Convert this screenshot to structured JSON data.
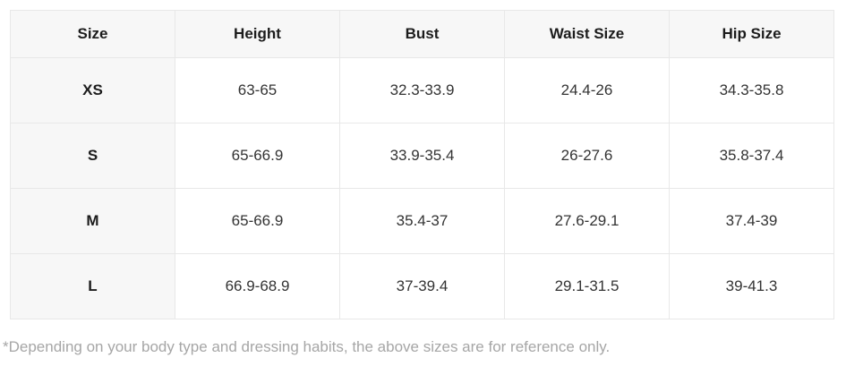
{
  "table": {
    "columns": [
      "Size",
      "Height",
      "Bust",
      "Waist Size",
      "Hip Size"
    ],
    "row_keys": [
      "size",
      "height",
      "bust",
      "waist",
      "hip"
    ],
    "rows": [
      {
        "size": "XS",
        "height": "63-65",
        "bust": "32.3-33.9",
        "waist": "24.4-26",
        "hip": "34.3-35.8"
      },
      {
        "size": "S",
        "height": "65-66.9",
        "bust": "33.9-35.4",
        "waist": "26-27.6",
        "hip": "35.8-37.4"
      },
      {
        "size": "M",
        "height": "65-66.9",
        "bust": "35.4-37",
        "waist": "27.6-29.1",
        "hip": "37.4-39"
      },
      {
        "size": "L",
        "height": "66.9-68.9",
        "bust": "37-39.4",
        "waist": "29.1-31.5",
        "hip": "39-41.3"
      }
    ]
  },
  "footnote": "*Depending on your body type and dressing habits, the above sizes are for reference only.",
  "colors": {
    "header_fill": "#f7f7f7",
    "border": "#e8e8e8",
    "header_text": "#1c1c1c",
    "cell_text": "#333333",
    "footnote_text": "#a6a6a6"
  }
}
